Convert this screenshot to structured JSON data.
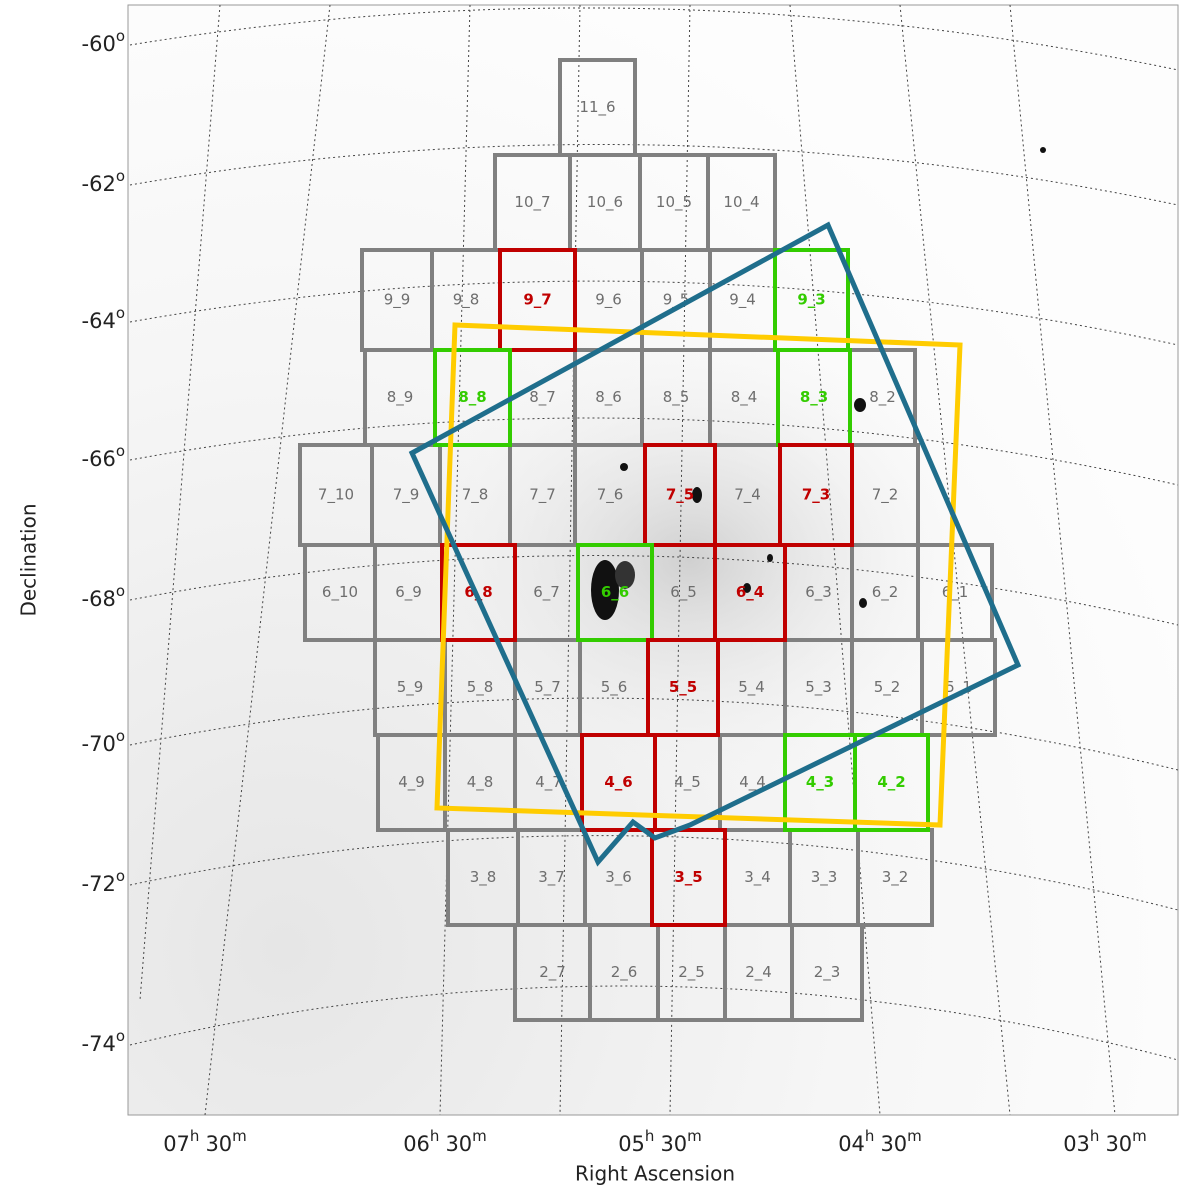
{
  "axes": {
    "x_label": "Right Ascension",
    "y_label": "Declination",
    "degree_sign": "o",
    "hour_sign": "h",
    "minute_sign": "m",
    "dec_ticks": [
      "-60",
      "-62",
      "-64",
      "-66",
      "-68",
      "-70",
      "-72",
      "-74"
    ],
    "ra_ticks": [
      {
        "h": "07",
        "m": "30"
      },
      {
        "h": "06",
        "m": "30"
      },
      {
        "h": "05",
        "m": "30"
      },
      {
        "h": "04",
        "m": "30"
      },
      {
        "h": "03",
        "m": "30"
      }
    ]
  },
  "tile_rows": [
    [
      {
        "label": "11_6",
        "color": "#808080"
      }
    ],
    [
      {
        "label": "10_7",
        "color": "#808080"
      },
      {
        "label": "10_6",
        "color": "#808080"
      },
      {
        "label": "10_5",
        "color": "#808080"
      },
      {
        "label": "10_4",
        "color": "#808080"
      }
    ],
    [
      {
        "label": "9_9",
        "color": "#808080"
      },
      {
        "label": "9_8",
        "color": "#808080"
      },
      {
        "label": "9_7",
        "color": "#c00000"
      },
      {
        "label": "9_6",
        "color": "#808080"
      },
      {
        "label": "9_5",
        "color": "#808080"
      },
      {
        "label": "9_4",
        "color": "#808080"
      },
      {
        "label": "9_3",
        "color": "#33cc00"
      }
    ],
    [
      {
        "label": "8_9",
        "color": "#808080"
      },
      {
        "label": "8_8",
        "color": "#33cc00"
      },
      {
        "label": "8_7",
        "color": "#808080"
      },
      {
        "label": "8_6",
        "color": "#808080"
      },
      {
        "label": "8_5",
        "color": "#808080"
      },
      {
        "label": "8_4",
        "color": "#808080"
      },
      {
        "label": "8_3",
        "color": "#33cc00"
      },
      {
        "label": "8_2",
        "color": "#808080"
      }
    ],
    [
      {
        "label": "7_10",
        "color": "#808080"
      },
      {
        "label": "7_9",
        "color": "#808080"
      },
      {
        "label": "7_8",
        "color": "#808080"
      },
      {
        "label": "7_7",
        "color": "#808080"
      },
      {
        "label": "7_6",
        "color": "#808080"
      },
      {
        "label": "7_5",
        "color": "#c00000"
      },
      {
        "label": "7_4",
        "color": "#808080"
      },
      {
        "label": "7_3",
        "color": "#c00000"
      },
      {
        "label": "7_2",
        "color": "#808080"
      }
    ],
    [
      {
        "label": "6_10",
        "color": "#808080"
      },
      {
        "label": "6_9",
        "color": "#808080"
      },
      {
        "label": "6_8",
        "color": "#c00000"
      },
      {
        "label": "6_7",
        "color": "#808080"
      },
      {
        "label": "6_6",
        "color": "#33cc00"
      },
      {
        "label": "6_5",
        "color": "#808080"
      },
      {
        "label": "6_4",
        "color": "#c00000"
      },
      {
        "label": "6_3",
        "color": "#808080"
      },
      {
        "label": "6_2",
        "color": "#808080"
      },
      {
        "label": "6_1",
        "color": "#808080"
      }
    ],
    [
      {
        "label": "5_9",
        "color": "#808080"
      },
      {
        "label": "5_8",
        "color": "#808080"
      },
      {
        "label": "5_7",
        "color": "#808080"
      },
      {
        "label": "5_6",
        "color": "#808080"
      },
      {
        "label": "5_5",
        "color": "#c00000"
      },
      {
        "label": "5_4",
        "color": "#808080"
      },
      {
        "label": "5_3",
        "color": "#808080"
      },
      {
        "label": "5_2",
        "color": "#808080"
      },
      {
        "label": "5_1",
        "color": "#808080"
      }
    ],
    [
      {
        "label": "4_9",
        "color": "#808080"
      },
      {
        "label": "4_8",
        "color": "#808080"
      },
      {
        "label": "4_7",
        "color": "#808080"
      },
      {
        "label": "4_6",
        "color": "#c00000"
      },
      {
        "label": "4_5",
        "color": "#808080"
      },
      {
        "label": "4_4",
        "color": "#808080"
      },
      {
        "label": "4_3",
        "color": "#33cc00"
      },
      {
        "label": "4_2",
        "color": "#33cc00"
      }
    ],
    [
      {
        "label": "3_8",
        "color": "#808080"
      },
      {
        "label": "3_7",
        "color": "#808080"
      },
      {
        "label": "3_6",
        "color": "#808080"
      },
      {
        "label": "3_5",
        "color": "#c00000"
      },
      {
        "label": "3_4",
        "color": "#808080"
      },
      {
        "label": "3_3",
        "color": "#808080"
      },
      {
        "label": "3_2",
        "color": "#808080"
      }
    ],
    [
      {
        "label": "2_7",
        "color": "#808080"
      },
      {
        "label": "2_6",
        "color": "#808080"
      },
      {
        "label": "2_5",
        "color": "#808080"
      },
      {
        "label": "2_4",
        "color": "#808080"
      },
      {
        "label": "2_3",
        "color": "#808080"
      }
    ]
  ]
}
